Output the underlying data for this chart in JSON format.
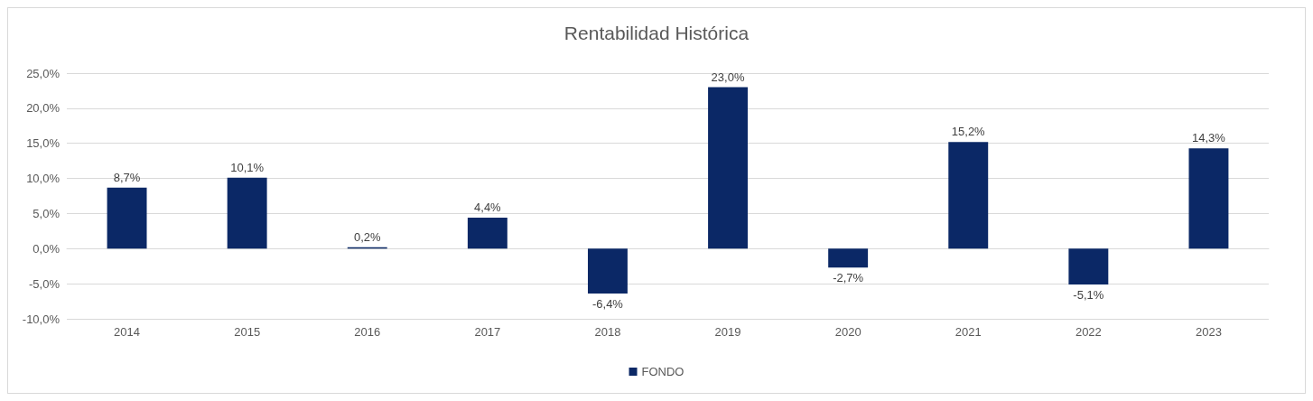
{
  "chart_data": {
    "type": "bar",
    "title": "Rentabilidad Histórica",
    "categories": [
      "2014",
      "2015",
      "2016",
      "2017",
      "2018",
      "2019",
      "2020",
      "2021",
      "2022",
      "2023"
    ],
    "series": [
      {
        "name": "FONDO",
        "color": "#0b2866",
        "values": [
          8.7,
          10.1,
          0.2,
          4.4,
          -6.4,
          23.0,
          -2.7,
          15.2,
          -5.1,
          14.3
        ],
        "value_labels": [
          "8,7%",
          "10,1%",
          "0,2%",
          "4,4%",
          "-6,4%",
          "23,0%",
          "-2,7%",
          "15,2%",
          "-5,1%",
          "14,3%"
        ]
      }
    ],
    "ylim": [
      -10,
      25
    ],
    "yticks": [
      {
        "value": -10,
        "label": "-10,0%"
      },
      {
        "value": -5,
        "label": "-5,0%"
      },
      {
        "value": 0,
        "label": "0,0%"
      },
      {
        "value": 5,
        "label": "5,0%"
      },
      {
        "value": 10,
        "label": "10,0%"
      },
      {
        "value": 15,
        "label": "15,0%"
      },
      {
        "value": 20,
        "label": "20,0%"
      },
      {
        "value": 25,
        "label": "25,0%"
      }
    ],
    "grid": "y",
    "legend": "bottom"
  }
}
